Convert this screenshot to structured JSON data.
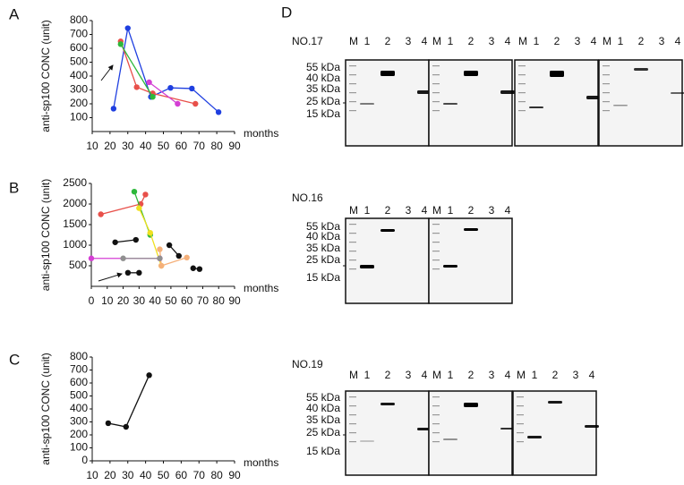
{
  "panel_labels": [
    "A",
    "B",
    "C",
    "D"
  ],
  "chart_data": [
    {
      "type": "line",
      "ylabel": "anti-sp100 CONC (unit)",
      "xlabel": "months",
      "xlim": [
        10,
        90
      ],
      "xticks": [
        10,
        20,
        30,
        40,
        50,
        60,
        70,
        80,
        90
      ],
      "ylim": [
        0,
        800
      ],
      "yticks": [
        100,
        200,
        300,
        400,
        500,
        600,
        700,
        800
      ],
      "series": [
        {
          "color": "#1f3fe0",
          "x": [
            22,
            30,
            43,
            54,
            66,
            81
          ],
          "values": [
            165,
            745,
            250,
            315,
            310,
            140
          ]
        },
        {
          "color": "#e8504a",
          "x": [
            26,
            35,
            44,
            68
          ],
          "values": [
            650,
            320,
            275,
            200
          ]
        },
        {
          "color": "#2db83a",
          "x": [
            26,
            44
          ],
          "values": [
            630,
            250
          ]
        },
        {
          "color": "#d43fd4",
          "x": [
            42,
            58
          ],
          "values": [
            355,
            200
          ]
        }
      ]
    },
    {
      "type": "line",
      "ylabel": "anti-sp100 CONC (unit)",
      "xlabel": "months",
      "xlim": [
        0,
        90
      ],
      "xticks": [
        0,
        10,
        20,
        30,
        40,
        50,
        60,
        70,
        80,
        90
      ],
      "ylim": [
        0,
        2500
      ],
      "yticks": [
        500,
        1000,
        1500,
        2000,
        2500
      ],
      "series": [
        {
          "color": "#e8504a",
          "x": [
            6,
            31,
            34
          ],
          "values": [
            1750,
            2000,
            2230
          ]
        },
        {
          "color": "#2db83a",
          "x": [
            27,
            37
          ],
          "values": [
            2300,
            1250
          ]
        },
        {
          "color": "#f0e020",
          "x": [
            30,
            37,
            44
          ],
          "values": [
            1900,
            1300,
            500
          ]
        },
        {
          "color": "#f5b07a",
          "x": [
            43,
            44,
            60
          ],
          "values": [
            900,
            500,
            700
          ]
        },
        {
          "color": "#d43fd4",
          "x": [
            0,
            43
          ],
          "values": [
            680,
            680
          ]
        },
        {
          "color": "#909090",
          "x": [
            20,
            43
          ],
          "values": [
            680,
            680
          ]
        },
        {
          "color": "#111111",
          "x": [
            15,
            28
          ],
          "values": [
            1070,
            1130
          ]
        },
        {
          "color": "#111111",
          "x": [
            49,
            55
          ],
          "values": [
            1000,
            740
          ]
        },
        {
          "color": "#111111",
          "x": [
            64,
            68
          ],
          "values": [
            440,
            420
          ]
        },
        {
          "color": "#111111",
          "x": [
            23,
            30
          ],
          "values": [
            330,
            330
          ]
        }
      ]
    },
    {
      "type": "line",
      "ylabel": "anti-sp100 CONC (unit)",
      "xlabel": "months",
      "xlim": [
        10,
        90
      ],
      "xticks": [
        10,
        20,
        30,
        40,
        50,
        60,
        70,
        80,
        90
      ],
      "ylim": [
        0,
        800
      ],
      "yticks": [
        0,
        100,
        200,
        300,
        400,
        500,
        600,
        700,
        800
      ],
      "series": [
        {
          "color": "#111111",
          "x": [
            19,
            29,
            42
          ],
          "values": [
            290,
            262,
            660
          ]
        }
      ]
    }
  ],
  "blots": [
    {
      "title": "NO.17",
      "lane_labels": [
        "M",
        "1",
        "2",
        "3",
        "4"
      ],
      "size_labels": [
        "55 kDa",
        "40 kDa",
        "35 kDa",
        "25 kDa",
        "15 kDa"
      ]
    },
    {
      "title": "NO.16",
      "lane_labels": [
        "M",
        "1",
        "2",
        "3",
        "4"
      ],
      "size_labels": [
        "55 kDa",
        "40 kDa",
        "35 kDa",
        "25 kDa",
        "15 kDa"
      ]
    },
    {
      "title": "NO.19",
      "lane_labels": [
        "M",
        "1",
        "2",
        "3",
        "4"
      ],
      "size_labels": [
        "55 kDa",
        "40 kDa",
        "35 kDa",
        "25 kDa",
        "15 kDa"
      ]
    }
  ]
}
